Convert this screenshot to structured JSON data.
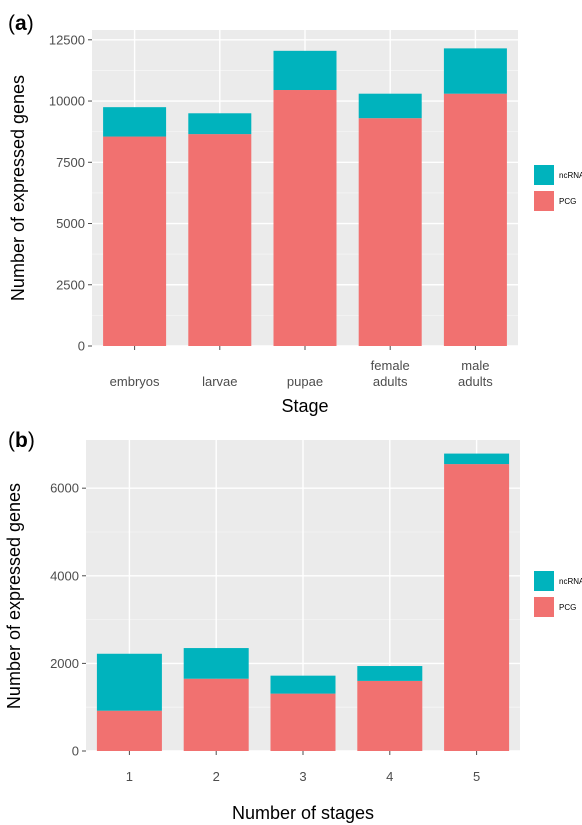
{
  "chart_data": [
    {
      "panel_label": "a",
      "type": "bar",
      "stacked": true,
      "categories": [
        [
          "embryos"
        ],
        [
          "larvae"
        ],
        [
          "pupae"
        ],
        [
          "female",
          "adults"
        ],
        [
          "male",
          "adults"
        ]
      ],
      "series": [
        {
          "name": "PCG",
          "color": "#F17170",
          "values": [
            8550,
            8650,
            10450,
            9300,
            10300
          ]
        },
        {
          "name": "ncRNA",
          "color": "#00B3BD",
          "values": [
            1200,
            850,
            1600,
            1000,
            1850
          ]
        }
      ],
      "yticks": [
        0,
        2500,
        5000,
        7500,
        10000,
        12500
      ],
      "ylim": [
        0,
        12900
      ],
      "xlabel": "Stage",
      "ylabel": "Number of expressed genes",
      "legend": [
        "ncRNA",
        "PCG"
      ],
      "grid": true
    },
    {
      "panel_label": "b",
      "type": "bar",
      "stacked": true,
      "categories": [
        [
          "1"
        ],
        [
          "2"
        ],
        [
          "3"
        ],
        [
          "4"
        ],
        [
          "5"
        ]
      ],
      "series": [
        {
          "name": "PCG",
          "color": "#F17170",
          "values": [
            920,
            1650,
            1310,
            1600,
            6550
          ]
        },
        {
          "name": "ncRNA",
          "color": "#00B3BD",
          "values": [
            1300,
            700,
            410,
            340,
            240
          ]
        }
      ],
      "yticks": [
        0,
        2000,
        4000,
        6000
      ],
      "ylim": [
        0,
        7100
      ],
      "xlabel": "Number of stages",
      "ylabel": "Number of expressed genes",
      "legend": [
        "ncRNA",
        "PCG"
      ],
      "grid": true
    }
  ]
}
